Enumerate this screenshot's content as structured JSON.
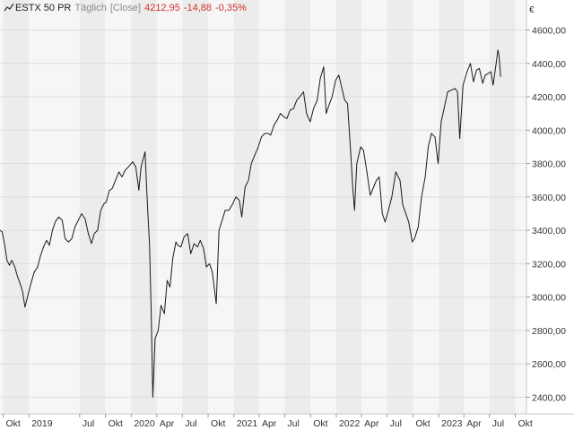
{
  "legend": {
    "icon": "line-chart-icon",
    "symbol": "ESTX 50 PR",
    "interval": "Täglich",
    "mode": "[Close]",
    "last": "4212,95",
    "change": "-14,88",
    "change_pct": "-0,35%"
  },
  "colors": {
    "line": "#1a1a1a",
    "band_dark": "#ececec",
    "band_light": "#f6f6f6",
    "grid": "#dcdcdc",
    "negative": "#d0312d"
  },
  "chart_data": {
    "type": "line",
    "title": "",
    "xlabel": "",
    "ylabel": "",
    "currency_label": "€",
    "ylim": [
      2300,
      4780
    ],
    "xlim": [
      "2018-09-20",
      "2023-11-10"
    ],
    "grid": true,
    "y_ticks": [
      {
        "value": 2400,
        "label": "2400,00"
      },
      {
        "value": 2600,
        "label": "2600,00"
      },
      {
        "value": 2800,
        "label": "2800,00"
      },
      {
        "value": 3000,
        "label": "3000,00"
      },
      {
        "value": 3200,
        "label": "3200,00"
      },
      {
        "value": 3400,
        "label": "3400,00"
      },
      {
        "value": 3600,
        "label": "3600,00"
      },
      {
        "value": 3800,
        "label": "3800,00"
      },
      {
        "value": 4000,
        "label": "4000,00"
      },
      {
        "value": 4200,
        "label": "4200,00"
      },
      {
        "value": 4400,
        "label": "4400,00"
      },
      {
        "value": 4600,
        "label": "4600,00"
      }
    ],
    "x_ticks": [
      {
        "date": "2018-10-01",
        "label": "Okt"
      },
      {
        "date": "2019-01-01",
        "label": "2019"
      },
      {
        "date": "2019-07-01",
        "label": "Jul"
      },
      {
        "date": "2019-10-01",
        "label": "Okt"
      },
      {
        "date": "2020-01-01",
        "label": "2020"
      },
      {
        "date": "2020-04-01",
        "label": "Apr"
      },
      {
        "date": "2020-07-01",
        "label": "Jul"
      },
      {
        "date": "2020-10-01",
        "label": "Okt"
      },
      {
        "date": "2021-01-01",
        "label": "2021"
      },
      {
        "date": "2021-04-01",
        "label": "Apr"
      },
      {
        "date": "2021-07-01",
        "label": "Jul"
      },
      {
        "date": "2021-10-01",
        "label": "Okt"
      },
      {
        "date": "2022-01-01",
        "label": "2022"
      },
      {
        "date": "2022-04-01",
        "label": "Apr"
      },
      {
        "date": "2022-07-01",
        "label": "Jul"
      },
      {
        "date": "2022-10-01",
        "label": "Okt"
      },
      {
        "date": "2023-01-01",
        "label": "2023"
      },
      {
        "date": "2023-04-01",
        "label": "Apr"
      },
      {
        "date": "2023-07-01",
        "label": "Jul"
      },
      {
        "date": "2023-10-01",
        "label": "Okt"
      }
    ],
    "series": [
      {
        "x": [
          "2018-09-20",
          "2018-09-28",
          "2018-10-08",
          "2018-10-15",
          "2018-10-24",
          "2018-11-01",
          "2018-11-12",
          "2018-11-20",
          "2018-12-01",
          "2018-12-10",
          "2018-12-18",
          "2018-12-27",
          "2019-01-08",
          "2019-01-20",
          "2019-02-01",
          "2019-02-12",
          "2019-02-22",
          "2019-03-05",
          "2019-03-15",
          "2019-03-26",
          "2019-04-05",
          "2019-04-17",
          "2019-04-30",
          "2019-05-10",
          "2019-05-22",
          "2019-06-03",
          "2019-06-14",
          "2019-06-26",
          "2019-07-08",
          "2019-07-20",
          "2019-08-01",
          "2019-08-12",
          "2019-08-22",
          "2019-09-03",
          "2019-09-14",
          "2019-09-26",
          "2019-10-04",
          "2019-10-15",
          "2019-10-25",
          "2019-11-06",
          "2019-11-18",
          "2019-11-29",
          "2019-12-10",
          "2019-12-22",
          "2020-01-06",
          "2020-01-17",
          "2020-01-28",
          "2020-02-05",
          "2020-02-19",
          "2020-02-28",
          "2020-03-06",
          "2020-03-12",
          "2020-03-18",
          "2020-03-26",
          "2020-04-06",
          "2020-04-16",
          "2020-04-28",
          "2020-05-08",
          "2020-05-18",
          "2020-05-28",
          "2020-06-08",
          "2020-06-15",
          "2020-06-26",
          "2020-07-07",
          "2020-07-20",
          "2020-07-31",
          "2020-08-12",
          "2020-08-24",
          "2020-09-03",
          "2020-09-15",
          "2020-09-25",
          "2020-10-06",
          "2020-10-16",
          "2020-10-30",
          "2020-11-09",
          "2020-11-20",
          "2020-12-01",
          "2020-12-14",
          "2020-12-28",
          "2021-01-08",
          "2021-01-20",
          "2021-01-29",
          "2021-02-10",
          "2021-02-22",
          "2021-03-04",
          "2021-03-16",
          "2021-03-29",
          "2021-04-09",
          "2021-04-21",
          "2021-05-04",
          "2021-05-12",
          "2021-05-24",
          "2021-06-04",
          "2021-06-16",
          "2021-06-28",
          "2021-07-09",
          "2021-07-20",
          "2021-08-02",
          "2021-08-13",
          "2021-08-24",
          "2021-09-06",
          "2021-09-17",
          "2021-09-30",
          "2021-10-12",
          "2021-10-25",
          "2021-11-05",
          "2021-11-17",
          "2021-11-26",
          "2021-12-06",
          "2021-12-17",
          "2021-12-30",
          "2022-01-10",
          "2022-01-21",
          "2022-01-31",
          "2022-02-10",
          "2022-02-22",
          "2022-03-01",
          "2022-03-07",
          "2022-03-15",
          "2022-03-29",
          "2022-04-08",
          "2022-04-20",
          "2022-05-02",
          "2022-05-12",
          "2022-05-24",
          "2022-06-03",
          "2022-06-14",
          "2022-06-24",
          "2022-07-06",
          "2022-07-18",
          "2022-08-01",
          "2022-08-16",
          "2022-08-26",
          "2022-09-06",
          "2022-09-16",
          "2022-09-29",
          "2022-10-07",
          "2022-10-20",
          "2022-11-01",
          "2022-11-14",
          "2022-11-25",
          "2022-12-06",
          "2022-12-19",
          "2022-12-30",
          "2023-01-10",
          "2023-01-23",
          "2023-02-02",
          "2023-02-16",
          "2023-02-28",
          "2023-03-09",
          "2023-03-17",
          "2023-03-29",
          "2023-04-12",
          "2023-04-24",
          "2023-05-05",
          "2023-05-16",
          "2023-05-26",
          "2023-06-07",
          "2023-06-16",
          "2023-06-27",
          "2023-07-06",
          "2023-07-14",
          "2023-07-25",
          "2023-07-31",
          "2023-08-04",
          "2023-08-10"
        ],
        "values": [
          3400,
          3390,
          3300,
          3220,
          3190,
          3220,
          3180,
          3130,
          3080,
          3030,
          2940,
          3000,
          3080,
          3150,
          3180,
          3250,
          3300,
          3340,
          3310,
          3400,
          3450,
          3480,
          3460,
          3350,
          3330,
          3350,
          3420,
          3460,
          3500,
          3470,
          3380,
          3320,
          3380,
          3400,
          3520,
          3560,
          3570,
          3640,
          3650,
          3700,
          3750,
          3720,
          3760,
          3780,
          3810,
          3780,
          3640,
          3780,
          3870,
          3540,
          3320,
          2900,
          2400,
          2750,
          2800,
          2950,
          2900,
          3100,
          3060,
          3230,
          3330,
          3310,
          3300,
          3360,
          3380,
          3260,
          3320,
          3300,
          3340,
          3290,
          3180,
          3200,
          3150,
          2960,
          3400,
          3460,
          3520,
          3520,
          3560,
          3600,
          3580,
          3480,
          3660,
          3700,
          3800,
          3850,
          3900,
          3960,
          3980,
          3980,
          3970,
          4030,
          4060,
          4100,
          4080,
          4070,
          4120,
          4130,
          4180,
          4200,
          4230,
          4100,
          4050,
          4130,
          4180,
          4310,
          4380,
          4100,
          4150,
          4200,
          4300,
          4330,
          4250,
          4180,
          4160,
          3850,
          3650,
          3520,
          3800,
          3900,
          3880,
          3750,
          3610,
          3650,
          3700,
          3720,
          3500,
          3450,
          3520,
          3600,
          3750,
          3700,
          3550,
          3500,
          3450,
          3330,
          3350,
          3420,
          3600,
          3720,
          3900,
          3980,
          3960,
          3800,
          4050,
          4150,
          4230,
          4240,
          4250,
          4230,
          3950,
          4270,
          4350,
          4400,
          4290,
          4360,
          4370,
          4280,
          4330,
          4340,
          4350,
          4270,
          4400,
          4480,
          4450,
          4320
        ]
      }
    ]
  }
}
